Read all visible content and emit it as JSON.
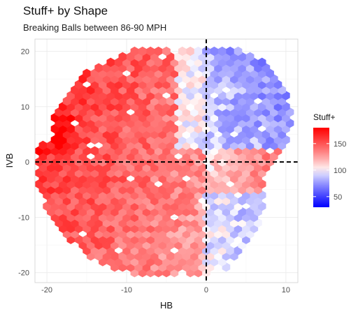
{
  "chart_data": {
    "type": "heatmap",
    "title": "Stuff+ by Shape",
    "subtitle": "Breaking Balls between 86-90 MPH",
    "xlabel": "HB",
    "ylabel": "IVB",
    "xlim": [
      -21.5,
      11.5
    ],
    "ylim": [
      -21.8,
      22.2
    ],
    "x_ticks": [
      -20,
      -10,
      0,
      10
    ],
    "y_ticks": [
      -20,
      -10,
      0,
      10,
      20
    ],
    "reference_lines": {
      "x": 0,
      "y": 0,
      "style": "dashed"
    },
    "grid": true,
    "legend": {
      "title": "Stuff+",
      "placement": "right",
      "ticks": [
        50,
        100,
        150
      ],
      "range": [
        30,
        180
      ],
      "low_color": "#0000ff",
      "mid_color": "#ffffff",
      "high_color": "#ff0000",
      "midpoint": 100
    },
    "bin_size": 1.0
  }
}
